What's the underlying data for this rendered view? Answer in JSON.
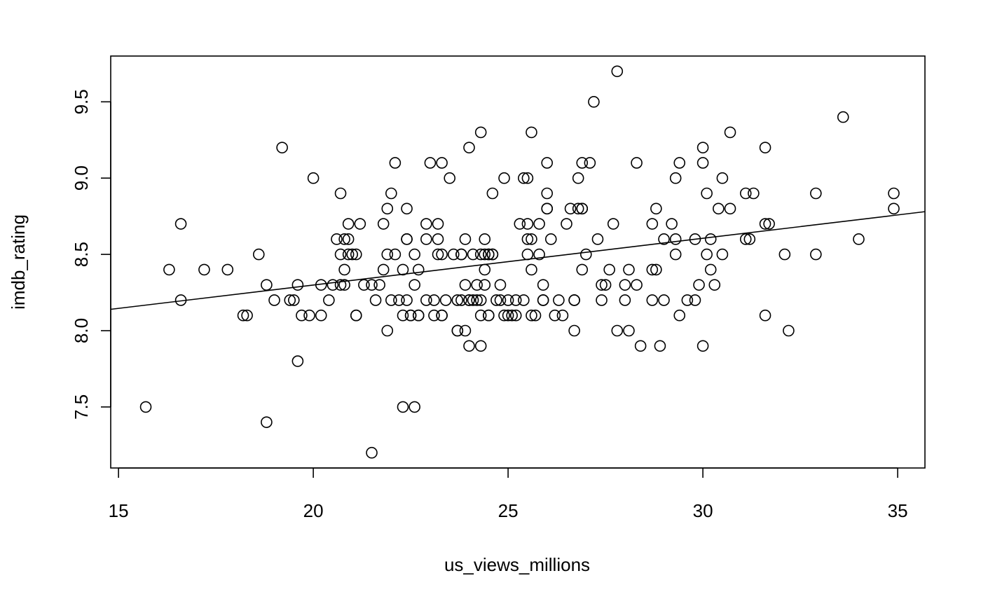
{
  "chart_data": {
    "type": "scatter",
    "title": "",
    "xlabel": "us_views_millions",
    "ylabel": "imdb_rating",
    "xlim": [
      14.8,
      35.7
    ],
    "ylim": [
      7.1,
      9.8
    ],
    "x_ticks": [
      15,
      20,
      25,
      30,
      35
    ],
    "y_ticks": [
      7.5,
      8.0,
      8.5,
      9.0,
      9.5
    ],
    "grid": false,
    "fit_line": {
      "x": [
        14.8,
        35.7
      ],
      "y": [
        8.14,
        8.78
      ]
    },
    "points": [
      [
        15.7,
        7.5
      ],
      [
        16.3,
        8.4
      ],
      [
        16.6,
        8.7
      ],
      [
        16.6,
        8.2
      ],
      [
        17.2,
        8.4
      ],
      [
        17.8,
        8.4
      ],
      [
        18.2,
        8.1
      ],
      [
        18.3,
        8.1
      ],
      [
        18.6,
        8.5
      ],
      [
        18.8,
        8.3
      ],
      [
        18.8,
        7.4
      ],
      [
        19.0,
        8.2
      ],
      [
        19.2,
        9.2
      ],
      [
        19.4,
        8.2
      ],
      [
        19.5,
        8.2
      ],
      [
        19.6,
        8.3
      ],
      [
        19.6,
        7.8
      ],
      [
        19.7,
        8.1
      ],
      [
        19.9,
        8.1
      ],
      [
        20.0,
        9.0
      ],
      [
        20.2,
        8.1
      ],
      [
        20.2,
        8.3
      ],
      [
        20.4,
        8.2
      ],
      [
        20.5,
        8.3
      ],
      [
        20.6,
        8.6
      ],
      [
        20.7,
        8.9
      ],
      [
        20.7,
        8.5
      ],
      [
        20.7,
        8.3
      ],
      [
        20.8,
        8.6
      ],
      [
        20.8,
        8.3
      ],
      [
        20.8,
        8.4
      ],
      [
        20.9,
        8.6
      ],
      [
        20.9,
        8.7
      ],
      [
        20.9,
        8.5
      ],
      [
        21.0,
        8.5
      ],
      [
        21.1,
        8.5
      ],
      [
        21.1,
        8.1
      ],
      [
        21.1,
        8.1
      ],
      [
        21.2,
        8.7
      ],
      [
        21.3,
        8.3
      ],
      [
        21.5,
        8.3
      ],
      [
        21.5,
        7.2
      ],
      [
        21.6,
        8.2
      ],
      [
        21.7,
        8.3
      ],
      [
        21.8,
        8.4
      ],
      [
        21.8,
        8.7
      ],
      [
        21.9,
        8.8
      ],
      [
        21.9,
        8.0
      ],
      [
        21.9,
        8.5
      ],
      [
        22.0,
        8.9
      ],
      [
        22.0,
        8.2
      ],
      [
        22.1,
        9.1
      ],
      [
        22.1,
        8.5
      ],
      [
        22.2,
        8.2
      ],
      [
        22.3,
        8.4
      ],
      [
        22.3,
        8.1
      ],
      [
        22.3,
        7.5
      ],
      [
        22.4,
        8.8
      ],
      [
        22.4,
        8.6
      ],
      [
        22.4,
        8.6
      ],
      [
        22.4,
        8.2
      ],
      [
        22.5,
        8.1
      ],
      [
        22.5,
        8.1
      ],
      [
        22.6,
        7.5
      ],
      [
        22.6,
        8.3
      ],
      [
        22.6,
        8.5
      ],
      [
        22.7,
        8.1
      ],
      [
        22.7,
        8.4
      ],
      [
        22.7,
        8.1
      ],
      [
        22.9,
        8.6
      ],
      [
        22.9,
        8.7
      ],
      [
        22.9,
        8.2
      ],
      [
        23.0,
        9.1
      ],
      [
        23.1,
        8.2
      ],
      [
        23.1,
        8.1
      ],
      [
        23.2,
        8.6
      ],
      [
        23.2,
        8.7
      ],
      [
        23.2,
        8.5
      ],
      [
        23.3,
        8.1
      ],
      [
        23.3,
        8.5
      ],
      [
        23.3,
        9.1
      ],
      [
        23.3,
        8.1
      ],
      [
        23.4,
        8.2
      ],
      [
        23.5,
        9.0
      ],
      [
        23.6,
        8.5
      ],
      [
        23.7,
        8.0
      ],
      [
        23.7,
        8.0
      ],
      [
        23.7,
        8.2
      ],
      [
        23.8,
        8.5
      ],
      [
        23.8,
        8.2
      ],
      [
        23.8,
        8.5
      ],
      [
        23.9,
        8.6
      ],
      [
        23.9,
        8.3
      ],
      [
        23.9,
        8.0
      ],
      [
        24.0,
        7.9
      ],
      [
        24.0,
        9.2
      ],
      [
        24.0,
        8.2
      ],
      [
        24.0,
        8.2
      ],
      [
        24.1,
        8.5
      ],
      [
        24.1,
        8.2
      ],
      [
        24.2,
        8.3
      ],
      [
        24.2,
        8.2
      ],
      [
        24.3,
        9.3
      ],
      [
        24.3,
        8.1
      ],
      [
        24.3,
        7.9
      ],
      [
        24.3,
        8.5
      ],
      [
        24.3,
        8.2
      ],
      [
        24.4,
        8.3
      ],
      [
        24.4,
        8.6
      ],
      [
        24.4,
        8.5
      ],
      [
        24.4,
        8.4
      ],
      [
        24.5,
        8.5
      ],
      [
        24.5,
        8.1
      ],
      [
        24.5,
        8.1
      ],
      [
        24.5,
        8.5
      ],
      [
        24.6,
        8.5
      ],
      [
        24.6,
        8.9
      ],
      [
        24.6,
        8.5
      ],
      [
        24.7,
        8.2
      ],
      [
        24.8,
        8.2
      ],
      [
        24.8,
        8.3
      ],
      [
        24.9,
        9.0
      ],
      [
        24.9,
        8.1
      ],
      [
        25.0,
        8.1
      ],
      [
        25.0,
        8.2
      ],
      [
        25.1,
        8.1
      ],
      [
        25.2,
        8.1
      ],
      [
        25.2,
        8.2
      ],
      [
        25.3,
        8.7
      ],
      [
        25.4,
        9.0
      ],
      [
        25.4,
        8.2
      ],
      [
        25.5,
        8.5
      ],
      [
        25.5,
        8.7
      ],
      [
        25.5,
        8.6
      ],
      [
        25.5,
        9.0
      ],
      [
        25.6,
        8.6
      ],
      [
        25.6,
        8.1
      ],
      [
        25.6,
        9.3
      ],
      [
        25.6,
        8.4
      ],
      [
        25.7,
        8.1
      ],
      [
        25.8,
        8.5
      ],
      [
        25.8,
        8.7
      ],
      [
        25.9,
        8.3
      ],
      [
        25.9,
        8.2
      ],
      [
        25.9,
        8.2
      ],
      [
        26.0,
        9.1
      ],
      [
        26.0,
        8.9
      ],
      [
        26.0,
        8.8
      ],
      [
        26.0,
        8.8
      ],
      [
        26.1,
        8.6
      ],
      [
        26.2,
        8.1
      ],
      [
        26.3,
        8.2
      ],
      [
        26.4,
        8.1
      ],
      [
        26.5,
        8.7
      ],
      [
        26.6,
        8.8
      ],
      [
        26.7,
        8.2
      ],
      [
        26.7,
        8.2
      ],
      [
        26.7,
        8.0
      ],
      [
        26.8,
        9.0
      ],
      [
        26.8,
        8.8
      ],
      [
        26.9,
        8.8
      ],
      [
        26.9,
        9.1
      ],
      [
        26.9,
        8.4
      ],
      [
        26.9,
        8.8
      ],
      [
        27.0,
        8.5
      ],
      [
        27.1,
        9.1
      ],
      [
        27.2,
        9.5
      ],
      [
        27.3,
        8.6
      ],
      [
        27.4,
        8.3
      ],
      [
        27.4,
        8.2
      ],
      [
        27.5,
        8.3
      ],
      [
        27.6,
        8.4
      ],
      [
        27.7,
        8.7
      ],
      [
        27.8,
        9.7
      ],
      [
        27.8,
        8.0
      ],
      [
        28.0,
        8.3
      ],
      [
        28.0,
        8.2
      ],
      [
        28.1,
        8.0
      ],
      [
        28.1,
        8.4
      ],
      [
        28.3,
        9.1
      ],
      [
        28.3,
        8.3
      ],
      [
        28.4,
        7.9
      ],
      [
        28.7,
        8.2
      ],
      [
        28.7,
        8.4
      ],
      [
        28.7,
        8.7
      ],
      [
        28.8,
        8.4
      ],
      [
        28.8,
        8.8
      ],
      [
        28.9,
        7.9
      ],
      [
        29.0,
        8.6
      ],
      [
        29.0,
        8.2
      ],
      [
        29.2,
        8.7
      ],
      [
        29.3,
        8.6
      ],
      [
        29.3,
        9.0
      ],
      [
        29.3,
        8.5
      ],
      [
        29.4,
        8.1
      ],
      [
        29.4,
        9.1
      ],
      [
        29.6,
        8.2
      ],
      [
        29.8,
        8.2
      ],
      [
        29.8,
        8.6
      ],
      [
        29.9,
        8.3
      ],
      [
        30.0,
        7.9
      ],
      [
        30.0,
        9.2
      ],
      [
        30.0,
        9.1
      ],
      [
        30.1,
        8.9
      ],
      [
        30.1,
        8.5
      ],
      [
        30.2,
        8.4
      ],
      [
        30.2,
        8.6
      ],
      [
        30.3,
        8.3
      ],
      [
        30.4,
        8.8
      ],
      [
        30.5,
        9.0
      ],
      [
        30.5,
        8.5
      ],
      [
        30.7,
        9.3
      ],
      [
        30.7,
        8.8
      ],
      [
        31.1,
        8.9
      ],
      [
        31.1,
        8.6
      ],
      [
        31.2,
        8.6
      ],
      [
        31.3,
        8.9
      ],
      [
        31.6,
        9.2
      ],
      [
        31.6,
        8.7
      ],
      [
        31.6,
        8.1
      ],
      [
        31.7,
        8.7
      ],
      [
        32.1,
        8.5
      ],
      [
        32.2,
        8.0
      ],
      [
        32.9,
        8.9
      ],
      [
        32.9,
        8.5
      ],
      [
        33.6,
        9.4
      ],
      [
        34.0,
        8.6
      ],
      [
        34.9,
        8.9
      ],
      [
        34.9,
        8.8
      ]
    ]
  }
}
